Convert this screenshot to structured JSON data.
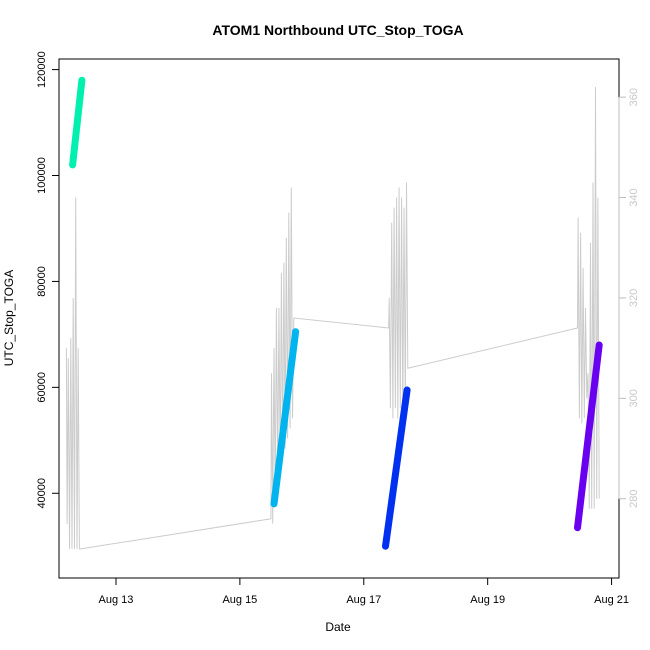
{
  "chart_data": {
    "type": "scatter",
    "title": "ATOM1 Northbound UTC_Stop_TOGA",
    "xlabel": "Date",
    "ylabel": "UTC_Stop_TOGA",
    "x_ticks": [
      "Aug 13",
      "Aug 15",
      "Aug 17",
      "Aug 19",
      "Aug 21"
    ],
    "x_tick_values": [
      13,
      15,
      17,
      19,
      21
    ],
    "xlim": [
      12.08,
      21.12
    ],
    "y_ticks": [
      "40000",
      "60000",
      "80000",
      "100000",
      "120000"
    ],
    "y_tick_values": [
      40000,
      60000,
      80000,
      100000,
      120000
    ],
    "ylim": [
      24000,
      122000
    ],
    "y2_ticks": [
      "280",
      "300",
      "320",
      "340",
      "360"
    ],
    "y2_tick_values": [
      280,
      300,
      320,
      340,
      360
    ],
    "y2lim": [
      264.2,
      367.6
    ],
    "grid": false,
    "colors": {
      "trace": "#cccccc",
      "axis": "#000000",
      "right_axis": "#c8c8c8"
    },
    "series": [
      {
        "color": "#00f0b0",
        "points": [
          [
            12.3,
            102000
          ],
          [
            12.45,
            118000
          ]
        ]
      },
      {
        "color": "#00b4f0",
        "points": [
          [
            15.55,
            38000
          ],
          [
            15.9,
            70500
          ]
        ]
      },
      {
        "color": "#0030f0",
        "points": [
          [
            17.35,
            30000
          ],
          [
            17.7,
            59500
          ]
        ]
      },
      {
        "color": "#6a00f0",
        "points": [
          [
            20.45,
            33500
          ],
          [
            20.8,
            68000
          ]
        ]
      }
    ],
    "secondary_trace": {
      "axis": "right",
      "points": [
        [
          12.2,
          310
        ],
        [
          12.21,
          275
        ],
        [
          12.23,
          308
        ],
        [
          12.25,
          270
        ],
        [
          12.27,
          312
        ],
        [
          12.29,
          270
        ],
        [
          12.31,
          320
        ],
        [
          12.33,
          270
        ],
        [
          12.35,
          340
        ],
        [
          12.37,
          270
        ],
        [
          12.39,
          310
        ],
        [
          12.41,
          270
        ],
        [
          12.43,
          270
        ],
        [
          15.5,
          276
        ],
        [
          15.51,
          305
        ],
        [
          15.53,
          275
        ],
        [
          15.55,
          310
        ],
        [
          15.57,
          280
        ],
        [
          15.59,
          318
        ],
        [
          15.61,
          284
        ],
        [
          15.63,
          318
        ],
        [
          15.65,
          286
        ],
        [
          15.67,
          325
        ],
        [
          15.69,
          288
        ],
        [
          15.71,
          327
        ],
        [
          15.73,
          290
        ],
        [
          15.75,
          332
        ],
        [
          15.77,
          292
        ],
        [
          15.79,
          337
        ],
        [
          15.81,
          294
        ],
        [
          15.83,
          342
        ],
        [
          15.85,
          296
        ],
        [
          15.87,
          316
        ],
        [
          17.4,
          314
        ],
        [
          17.41,
          320
        ],
        [
          17.43,
          298
        ],
        [
          17.45,
          335
        ],
        [
          17.47,
          296
        ],
        [
          17.49,
          338
        ],
        [
          17.51,
          298
        ],
        [
          17.53,
          340
        ],
        [
          17.55,
          296
        ],
        [
          17.57,
          342
        ],
        [
          17.59,
          298
        ],
        [
          17.61,
          340
        ],
        [
          17.63,
          296
        ],
        [
          17.65,
          338
        ],
        [
          17.67,
          298
        ],
        [
          17.69,
          343
        ],
        [
          17.71,
          306
        ],
        [
          20.45,
          314
        ],
        [
          20.46,
          336
        ],
        [
          20.48,
          296
        ],
        [
          20.5,
          333
        ],
        [
          20.52,
          295
        ],
        [
          20.54,
          326
        ],
        [
          20.56,
          296
        ],
        [
          20.58,
          318
        ],
        [
          20.6,
          300
        ],
        [
          20.62,
          305
        ],
        [
          20.64,
          278
        ],
        [
          20.66,
          331
        ],
        [
          20.68,
          278
        ],
        [
          20.7,
          343
        ],
        [
          20.72,
          278
        ],
        [
          20.74,
          362
        ],
        [
          20.76,
          280
        ],
        [
          20.78,
          340
        ],
        [
          20.8,
          280
        ]
      ]
    }
  }
}
